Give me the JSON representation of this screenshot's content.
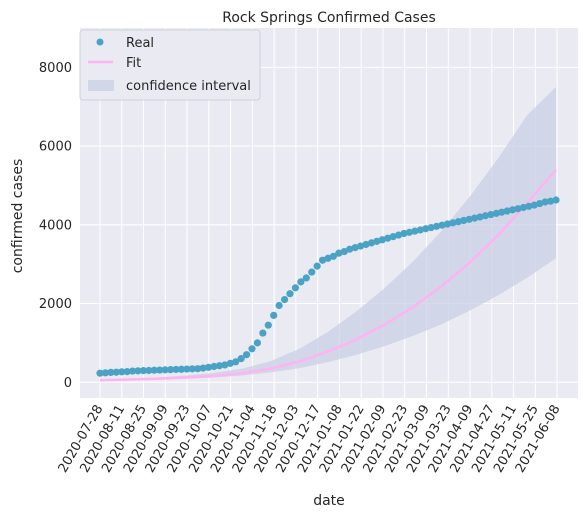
{
  "chart_data": {
    "type": "line",
    "title": "Rock Springs Confirmed Cases",
    "xlabel": "date",
    "ylabel": "confirmed cases",
    "ylim": [
      -400,
      9000
    ],
    "yticks": [
      0,
      2000,
      4000,
      6000,
      8000
    ],
    "xticks": [
      "2020-07-28",
      "2020-08-11",
      "2020-08-25",
      "2020-09-09",
      "2020-09-23",
      "2020-10-07",
      "2020-10-21",
      "2020-11-04",
      "2020-11-18",
      "2020-12-03",
      "2020-12-17",
      "2021-01-08",
      "2021-01-22",
      "2021-02-09",
      "2021-02-23",
      "2021-03-09",
      "2021-03-23",
      "2021-04-09",
      "2021-04-27",
      "2021-05-11",
      "2021-05-25",
      "2021-06-08"
    ],
    "grid": true,
    "legend_position": "top-left",
    "background": "#eaeaf2",
    "colors": {
      "real": "#4aa3c4",
      "fit": "#ffb3f3",
      "ci": "#c9cfe6"
    },
    "series": [
      {
        "name": "Real",
        "kind": "scatter",
        "values": [
          230,
          240,
          250,
          255,
          265,
          270,
          285,
          290,
          295,
          300,
          305,
          310,
          315,
          320,
          325,
          330,
          335,
          340,
          345,
          360,
          380,
          400,
          420,
          440,
          480,
          520,
          600,
          700,
          850,
          1000,
          1250,
          1450,
          1700,
          1950,
          2100,
          2250,
          2400,
          2550,
          2650,
          2800,
          2950,
          3100,
          3150,
          3200,
          3280,
          3320,
          3380,
          3420,
          3460,
          3500,
          3540,
          3580,
          3620,
          3660,
          3700,
          3740,
          3780,
          3810,
          3840,
          3870,
          3900,
          3930,
          3960,
          3990,
          4020,
          4050,
          4080,
          4110,
          4140,
          4170,
          4200,
          4230,
          4260,
          4290,
          4320,
          4350,
          4380,
          4410,
          4440,
          4470,
          4500,
          4540,
          4580,
          4600,
          4630
        ]
      },
      {
        "name": "Fit",
        "kind": "line",
        "x": [
          0,
          20,
          40,
          60,
          80,
          100,
          120,
          140,
          160,
          180,
          200,
          220,
          240,
          260,
          280,
          300,
          320
        ],
        "values": [
          50,
          70,
          90,
          120,
          160,
          230,
          350,
          530,
          780,
          1090,
          1470,
          1920,
          2450,
          3060,
          3760,
          4560,
          5400
        ]
      },
      {
        "name": "confidence interval",
        "kind": "band",
        "x": [
          0,
          20,
          40,
          60,
          80,
          100,
          120,
          140,
          160,
          180,
          200,
          220,
          240,
          260,
          280,
          300,
          320
        ],
        "lower": [
          40,
          55,
          70,
          90,
          120,
          170,
          250,
          360,
          510,
          700,
          920,
          1180,
          1480,
          1830,
          2220,
          2660,
          3150
        ],
        "upper": [
          60,
          90,
          120,
          170,
          240,
          350,
          540,
          850,
          1280,
          1800,
          2400,
          3080,
          3860,
          4740,
          5720,
          6800,
          7500
        ]
      }
    ]
  },
  "legend": {
    "items": [
      {
        "label": "Real",
        "type": "dot"
      },
      {
        "label": "Fit",
        "type": "line"
      },
      {
        "label": "confidence interval",
        "type": "patch"
      }
    ]
  }
}
